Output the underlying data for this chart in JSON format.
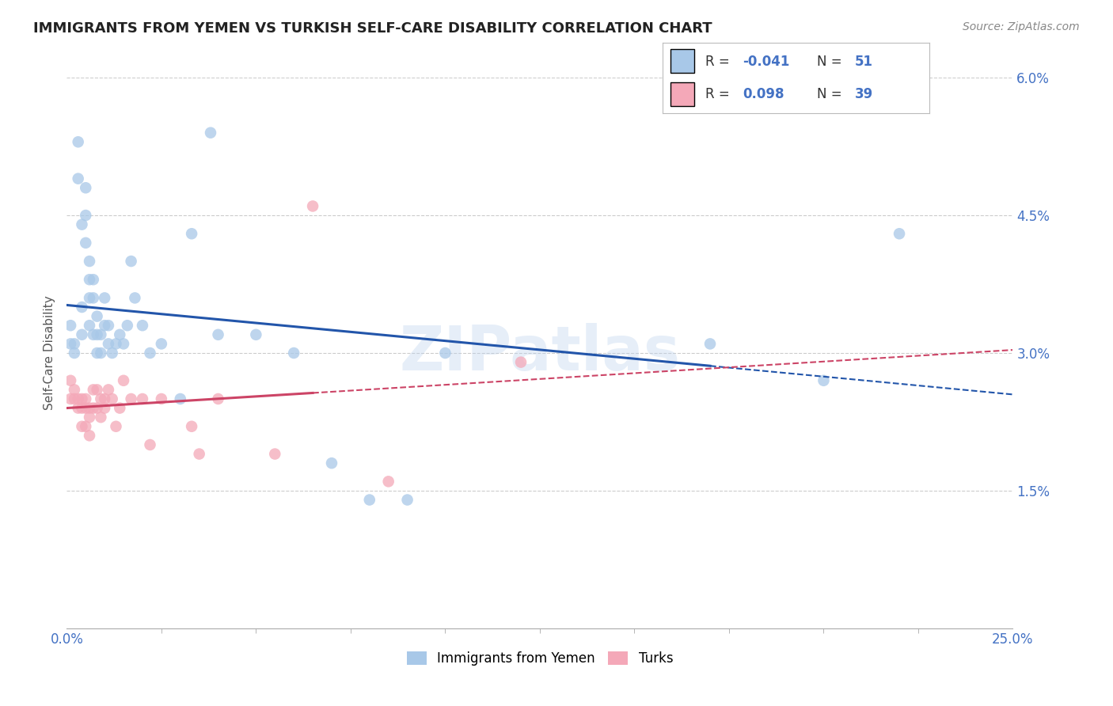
{
  "title": "IMMIGRANTS FROM YEMEN VS TURKISH SELF-CARE DISABILITY CORRELATION CHART",
  "source": "Source: ZipAtlas.com",
  "ylabel": "Self-Care Disability",
  "xlim": [
    0.0,
    0.25
  ],
  "ylim": [
    0.0,
    0.06
  ],
  "xticks_major": [
    0.0,
    0.25
  ],
  "xtick_major_labels": [
    "0.0%",
    "25.0%"
  ],
  "xticks_minor": [
    0.025,
    0.05,
    0.075,
    0.1,
    0.125,
    0.15,
    0.175,
    0.2,
    0.225
  ],
  "yticks": [
    0.0,
    0.015,
    0.03,
    0.045,
    0.06
  ],
  "ytick_labels": [
    "",
    "1.5%",
    "3.0%",
    "4.5%",
    "6.0%"
  ],
  "blue_color": "#a8c8e8",
  "pink_color": "#f4a8b8",
  "line_blue": "#2255aa",
  "line_pink": "#cc4466",
  "watermark": "ZIPatlas",
  "blue_r": -0.041,
  "pink_r": 0.098,
  "blue_n": 51,
  "pink_n": 39,
  "blue_x": [
    0.001,
    0.001,
    0.002,
    0.002,
    0.003,
    0.003,
    0.004,
    0.004,
    0.004,
    0.005,
    0.005,
    0.005,
    0.006,
    0.006,
    0.006,
    0.006,
    0.007,
    0.007,
    0.007,
    0.008,
    0.008,
    0.008,
    0.009,
    0.009,
    0.01,
    0.01,
    0.011,
    0.011,
    0.012,
    0.013,
    0.014,
    0.015,
    0.016,
    0.017,
    0.018,
    0.02,
    0.022,
    0.025,
    0.03,
    0.033,
    0.038,
    0.04,
    0.05,
    0.06,
    0.07,
    0.08,
    0.09,
    0.1,
    0.17,
    0.2,
    0.22
  ],
  "blue_y": [
    0.033,
    0.031,
    0.031,
    0.03,
    0.053,
    0.049,
    0.044,
    0.035,
    0.032,
    0.048,
    0.045,
    0.042,
    0.04,
    0.038,
    0.036,
    0.033,
    0.038,
    0.036,
    0.032,
    0.034,
    0.032,
    0.03,
    0.032,
    0.03,
    0.036,
    0.033,
    0.033,
    0.031,
    0.03,
    0.031,
    0.032,
    0.031,
    0.033,
    0.04,
    0.036,
    0.033,
    0.03,
    0.031,
    0.025,
    0.043,
    0.054,
    0.032,
    0.032,
    0.03,
    0.018,
    0.014,
    0.014,
    0.03,
    0.031,
    0.027,
    0.043
  ],
  "pink_x": [
    0.001,
    0.001,
    0.002,
    0.002,
    0.003,
    0.003,
    0.004,
    0.004,
    0.004,
    0.005,
    0.005,
    0.005,
    0.006,
    0.006,
    0.006,
    0.007,
    0.007,
    0.008,
    0.008,
    0.009,
    0.009,
    0.01,
    0.01,
    0.011,
    0.012,
    0.013,
    0.014,
    0.015,
    0.017,
    0.02,
    0.022,
    0.025,
    0.033,
    0.035,
    0.04,
    0.055,
    0.065,
    0.085,
    0.12
  ],
  "pink_y": [
    0.027,
    0.025,
    0.026,
    0.025,
    0.025,
    0.024,
    0.025,
    0.024,
    0.022,
    0.025,
    0.024,
    0.022,
    0.024,
    0.023,
    0.021,
    0.026,
    0.024,
    0.026,
    0.024,
    0.025,
    0.023,
    0.025,
    0.024,
    0.026,
    0.025,
    0.022,
    0.024,
    0.027,
    0.025,
    0.025,
    0.02,
    0.025,
    0.022,
    0.019,
    0.025,
    0.019,
    0.046,
    0.016,
    0.029
  ],
  "grid_color": "#cccccc",
  "bg_color": "#ffffff",
  "title_color": "#222222",
  "axis_color": "#4472c4",
  "blue_line_start_x": 0.0,
  "blue_line_end_x": 0.25,
  "blue_line_solid_end": 0.17,
  "pink_line_start_x": 0.0,
  "pink_line_end_x": 0.25,
  "pink_line_solid_end": 0.065
}
